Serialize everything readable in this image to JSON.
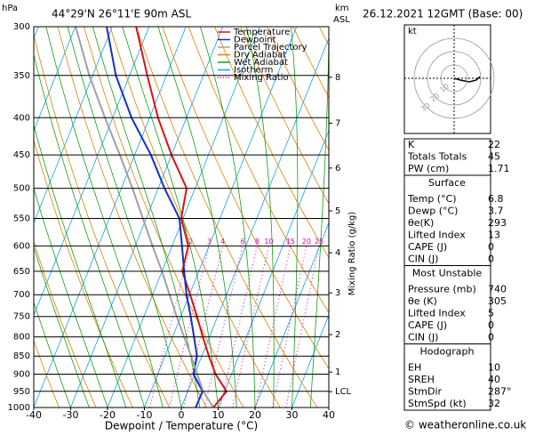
{
  "chart_data": {
    "type": "skewt",
    "title": "44°29'N 26°11'E 90m ASL",
    "subtitle": "26.12.2021 12GMT (Base: 00)",
    "ylabel": "hPa",
    "xlabel": "Dewpoint / Temperature (°C)",
    "km_label": "km",
    "km_label2": "ASL",
    "mixing_label": "Mixing Ratio (g/kg)",
    "ylim": [
      1000,
      300
    ],
    "yticks": [
      300,
      350,
      400,
      450,
      500,
      550,
      600,
      650,
      700,
      750,
      800,
      850,
      900,
      950,
      1000
    ],
    "xlim": [
      -40,
      40
    ],
    "xticks": [
      -40,
      -30,
      -20,
      -10,
      0,
      10,
      20,
      30,
      40
    ],
    "grid": true,
    "levels": [
      1000,
      950,
      900,
      850,
      800,
      750,
      700,
      650,
      600,
      550,
      500,
      450,
      400,
      350,
      300
    ],
    "series": [
      {
        "name": "Temperature",
        "color": "#e01010",
        "values": [
          8.7,
          10.5,
          5.7,
          1.9,
          -1.8,
          -5.6,
          -9.8,
          -14.5,
          -15.6,
          -20.5,
          -22.3,
          -30.0,
          -37.7,
          -45.2,
          -53.5
        ]
      },
      {
        "name": "Dewpoint",
        "color": "#1030d0",
        "values": [
          3.9,
          4.0,
          -0.3,
          -1.3,
          -4.2,
          -7.3,
          -10.8,
          -14.0,
          -17.3,
          -21.0,
          -28.3,
          -35.6,
          -44.9,
          -53.7,
          -61.5
        ]
      },
      {
        "name": "Parcel Trajectory",
        "color": "#a0a0a0",
        "values": [
          8.7,
          4.2,
          0.7,
          -2.9,
          -6.9,
          -11.1,
          -15.4,
          -20.0,
          -25.3,
          -30.9,
          -37.0,
          -44.0,
          -52.1,
          -60.9,
          -69.9
        ]
      }
    ],
    "reference_lines": [
      {
        "name": "Dry Adiabat",
        "color": "#e08000"
      },
      {
        "name": "Wet Adiabat",
        "color": "#10a010"
      },
      {
        "name": "Isotherm",
        "color": "#10a0f0"
      },
      {
        "name": "Mixing Ratio",
        "color": "#e000b0"
      }
    ],
    "mixing_ratios": [
      2,
      3,
      4,
      6,
      8,
      10,
      15,
      20,
      25
    ],
    "km_ticks": [
      {
        "value": 352,
        "label": "8"
      },
      {
        "value": 407,
        "label": "7"
      },
      {
        "value": 469,
        "label": "6"
      },
      {
        "value": 537,
        "label": "5"
      },
      {
        "value": 613,
        "label": "4"
      },
      {
        "value": 696,
        "label": "3"
      },
      {
        "value": 794,
        "label": "2"
      },
      {
        "value": 894,
        "label": "1"
      },
      {
        "value": 951,
        "label": "LCL"
      }
    ],
    "hodograph": {
      "label": "kt",
      "rings": [
        10,
        20,
        30
      ]
    }
  },
  "indices": [
    {
      "rows": [
        [
          "K",
          22
        ],
        [
          "Totals Totals",
          45
        ],
        [
          "PW (cm)",
          1.71
        ]
      ]
    },
    {
      "header": "Surface",
      "rows": [
        [
          "Temp (°C)",
          6.8
        ],
        [
          "Dewp (°C)",
          3.7
        ],
        [
          "θe(K)",
          293
        ],
        [
          "Lifted Index",
          13
        ],
        [
          "CAPE (J)",
          0
        ],
        [
          "CIN (J)",
          0
        ]
      ]
    },
    {
      "header": "Most Unstable",
      "rows": [
        [
          "Pressure (mb)",
          740
        ],
        [
          "θe (K)",
          305
        ],
        [
          "Lifted Index",
          5
        ],
        [
          "CAPE (J)",
          0
        ],
        [
          "CIN (J)",
          0
        ]
      ]
    },
    {
      "header": "Hodograph",
      "rows": [
        [
          "EH",
          10
        ],
        [
          "SREH",
          40
        ],
        [
          "StmDir",
          "287°"
        ],
        [
          "StmSpd (kt)",
          32
        ]
      ]
    }
  ],
  "footer": "© weatheronline.co.uk"
}
